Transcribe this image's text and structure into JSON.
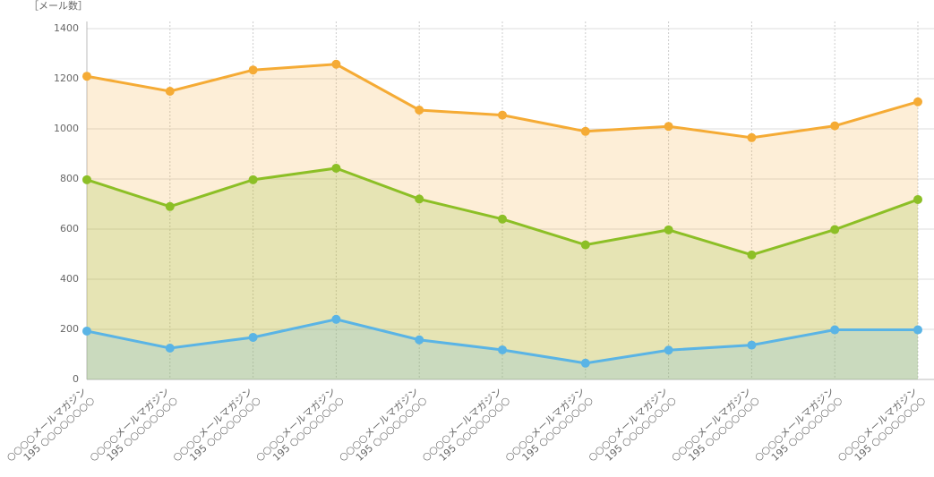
{
  "chart_data": {
    "type": "area",
    "y_label": "［メール数］",
    "categories": [
      [
        "○○○○メールマガジン",
        "195 ○○○○○○○○"
      ],
      [
        "○○○○メールマガジン",
        "195 ○○○○○○○○"
      ],
      [
        "○○○○メールマガジン",
        "195 ○○○○○○○○"
      ],
      [
        "○○○○メールマガジン",
        "195 ○○○○○○○○"
      ],
      [
        "○○○○メールマガジン",
        "195 ○○○○○○○○"
      ],
      [
        "○○○○メールマガジン",
        "195 ○○○○○○○○"
      ],
      [
        "○○○○メールマガジン",
        "195 ○○○○○○○○"
      ],
      [
        "○○○○メールマガジン",
        "195 ○○○○○○○○"
      ],
      [
        "○○○○メールマガジン",
        "195 ○○○○○○○○"
      ],
      [
        "○○○○メールマガジン",
        "195 ○○○○○○○○"
      ],
      [
        "○○○○メールマガジン",
        "195 ○○○○○○○○"
      ]
    ],
    "series": [
      {
        "color": "#f5ab35",
        "values": [
          1210,
          1150,
          1235,
          1258,
          1075,
          1055,
          990,
          1010,
          965,
          1012,
          1108
        ]
      },
      {
        "color": "#8cbf26",
        "values": [
          797,
          690,
          797,
          843,
          720,
          640,
          537,
          597,
          497,
          598,
          718
        ]
      },
      {
        "color": "#5ab4e5",
        "values": [
          193,
          125,
          168,
          240,
          158,
          118,
          65,
          117,
          137,
          198,
          198
        ]
      }
    ],
    "ylim": [
      0,
      1400
    ],
    "yticks": [
      0,
      200,
      400,
      600,
      800,
      1000,
      1200,
      1400
    ],
    "grid": true
  }
}
